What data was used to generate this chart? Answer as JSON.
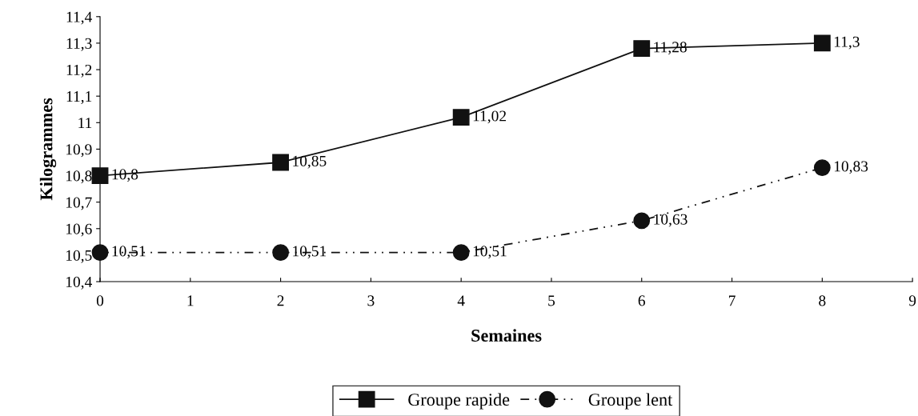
{
  "chart_data": {
    "type": "line",
    "xlabel": "Semaines",
    "ylabel": "Kilogrammes",
    "x": [
      0,
      2,
      4,
      6,
      8
    ],
    "series": [
      {
        "name": "Groupe rapide",
        "color": "#111111",
        "marker": "square",
        "line_style": "solid",
        "values": [
          10.8,
          10.85,
          11.02,
          11.28,
          11.3
        ],
        "value_labels": [
          "10,8",
          "10,85",
          "11,02",
          "11,28",
          "11,3"
        ]
      },
      {
        "name": "Groupe lent",
        "color": "#111111",
        "marker": "circle",
        "line_style": "dashed",
        "values": [
          10.51,
          10.51,
          10.51,
          10.63,
          10.83
        ],
        "value_labels": [
          "10,51",
          "10,51",
          "10,51",
          "10,63",
          "10,83"
        ]
      }
    ],
    "xlim": [
      0,
      9
    ],
    "xticks": [
      0,
      1,
      2,
      3,
      4,
      5,
      6,
      7,
      8,
      9
    ],
    "ylim": [
      10.4,
      11.4
    ],
    "yticks": [
      {
        "value": 10.4,
        "label": "10,4"
      },
      {
        "value": 10.5,
        "label": "10,5"
      },
      {
        "value": 10.6,
        "label": "10,6"
      },
      {
        "value": 10.7,
        "label": "10,7"
      },
      {
        "value": 10.8,
        "label": "10,8"
      },
      {
        "value": 10.9,
        "label": "10,9"
      },
      {
        "value": 11,
        "label": "11"
      },
      {
        "value": 11.1,
        "label": "11,1"
      },
      {
        "value": 11.2,
        "label": "11,2"
      },
      {
        "value": 11.3,
        "label": "11,3"
      },
      {
        "value": 11.4,
        "label": "11,4"
      }
    ],
    "grid": false,
    "legend": "bottom"
  }
}
